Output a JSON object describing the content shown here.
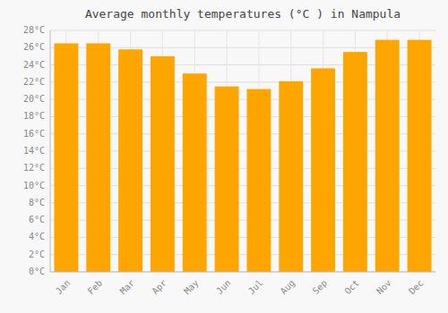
{
  "chart_data": {
    "type": "bar",
    "title": "Average monthly temperatures (°C ) in Nampula",
    "categories": [
      "Jan",
      "Feb",
      "Mar",
      "Apr",
      "May",
      "Jun",
      "Jul",
      "Aug",
      "Sep",
      "Oct",
      "Nov",
      "Dec"
    ],
    "values": [
      26.5,
      26.5,
      25.8,
      25.0,
      23.0,
      21.5,
      21.2,
      22.1,
      23.6,
      25.5,
      26.9,
      26.9
    ],
    "color": "#FFA500",
    "ylim": [
      0,
      28
    ],
    "yticks": [
      {
        "value": 0,
        "label": "0°C"
      },
      {
        "value": 2,
        "label": "2°C"
      },
      {
        "value": 4,
        "label": "4°C"
      },
      {
        "value": 6,
        "label": "6°C"
      },
      {
        "value": 8,
        "label": "8°C"
      },
      {
        "value": 10,
        "label": "10°C"
      },
      {
        "value": 12,
        "label": "12°C"
      },
      {
        "value": 14,
        "label": "14°C"
      },
      {
        "value": 16,
        "label": "16°C"
      },
      {
        "value": 18,
        "label": "18°C"
      },
      {
        "value": 20,
        "label": "20°C"
      },
      {
        "value": 22,
        "label": "22°C"
      },
      {
        "value": 24,
        "label": "24°C"
      },
      {
        "value": 26,
        "label": "26°C"
      },
      {
        "value": 28,
        "label": "28°C"
      }
    ],
    "grid": true
  }
}
